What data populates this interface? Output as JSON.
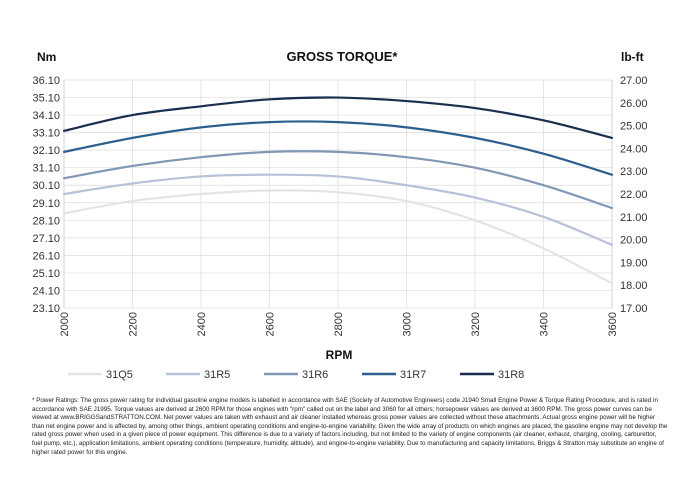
{
  "chart_data": {
    "type": "line",
    "title": "GROSS TORQUE*",
    "xlabel": "RPM",
    "ylabel": "Nm",
    "ylabel_right": "lb-ft",
    "x": [
      2000,
      2200,
      2400,
      2600,
      2800,
      3000,
      3200,
      3400,
      3600
    ],
    "xlim": [
      2000,
      3600
    ],
    "ylim": [
      23.1,
      36.1
    ],
    "ylim_right": [
      17.0,
      27.0
    ],
    "y_ticks": [
      "23.10",
      "24.10",
      "25.10",
      "26.10",
      "27.10",
      "28.10",
      "29.10",
      "30.10",
      "31.10",
      "32.10",
      "33.10",
      "34.10",
      "35.10",
      "36.10"
    ],
    "y_ticks_right": [
      "17.00",
      "18.00",
      "19.00",
      "20.00",
      "21.00",
      "22.00",
      "23.00",
      "24.00",
      "25.00",
      "26.00",
      "27.00"
    ],
    "x_ticks": [
      "2000",
      "2200",
      "2400",
      "2600",
      "2800",
      "3000",
      "3200",
      "3400",
      "3600"
    ],
    "grid": true,
    "legend_position": "bottom",
    "series": [
      {
        "name": "31Q5",
        "color": "#e3e4e8",
        "values": [
          28.5,
          29.2,
          29.6,
          29.8,
          29.7,
          29.2,
          28.1,
          26.5,
          24.5
        ]
      },
      {
        "name": "31R5",
        "color": "#b7c1d8",
        "values": [
          29.6,
          30.2,
          30.6,
          30.7,
          30.6,
          30.1,
          29.4,
          28.3,
          26.7
        ]
      },
      {
        "name": "31R6",
        "color": "#8197b6",
        "values": [
          30.5,
          31.2,
          31.7,
          32.0,
          32.0,
          31.7,
          31.1,
          30.1,
          28.8
        ]
      },
      {
        "name": "31R7",
        "color": "#2d5f8e",
        "values": [
          32.0,
          32.8,
          33.4,
          33.7,
          33.7,
          33.4,
          32.8,
          31.9,
          30.7
        ]
      },
      {
        "name": "31R8",
        "color": "#1a2f4f",
        "values": [
          33.2,
          34.1,
          34.6,
          35.0,
          35.1,
          34.9,
          34.5,
          33.8,
          32.8
        ]
      }
    ]
  },
  "footnote": "* Power Ratings: The gross power rating for individual gasoline engine models is labelled in accordance with SAE (Society of Automotive Engineers) code J1940 Small Engine Power & Torque Rating Procedure, and is rated in accordance with SAE J1995. Torque values are derived at 2600 RPM for those engines with \"rpm\" called out on the label and 3060 for all others; horsepower values are derived at 3600 RPM. The gross power curves can be viewed at www.BRIGGSandSTRATTON.COM. Net power values are taken with exhaust and air cleaner installed whereas gross power values are collected without these attachments. Actual gross engine power will be higher than net engine power and is affected by, among other things, ambient operating conditions and engine-to-engine variability. Given the wide array of products on which engines are placed, the gasoline engine may not develop the rated gross power when used in a given piece of power equipment. This difference is due to a variety of factors including, but not limited to the variety of engine components (air cleaner, exhaust, charging, cooling, carburettor, fuel pump, etc.), application limitations, ambient operating conditions (temperature, humidity, altitude), and engine-to-engine variability. Due to manufacturing and capacity limitations, Briggs & Stratton may substitute an engine of higher rated power for this engine."
}
